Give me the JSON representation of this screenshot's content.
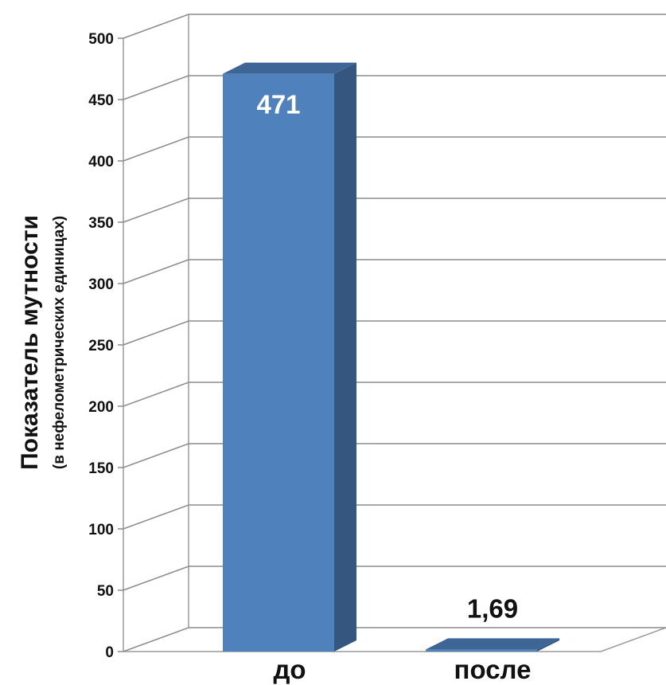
{
  "chart_data": {
    "type": "bar",
    "categories": [
      "до",
      "после"
    ],
    "values": [
      471,
      1.69
    ],
    "data_labels": [
      "471",
      "1,69"
    ],
    "ylabel": "Показатель мутности",
    "ylabel_sub": "(в нефелометрических единицах)",
    "ylim": [
      0,
      500
    ],
    "yticks": [
      0,
      50,
      100,
      150,
      200,
      250,
      300,
      350,
      400,
      450,
      500
    ],
    "grid": true,
    "style": "3d",
    "bar_color": "#4f81bd"
  }
}
